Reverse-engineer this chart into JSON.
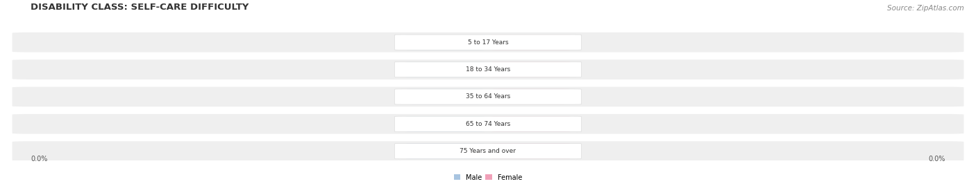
{
  "title": "DISABILITY CLASS: SELF-CARE DIFFICULTY",
  "source": "Source: ZipAtlas.com",
  "categories": [
    "5 to 17 Years",
    "18 to 34 Years",
    "35 to 64 Years",
    "65 to 74 Years",
    "75 Years and over"
  ],
  "male_values": [
    0.0,
    0.0,
    0.0,
    0.0,
    0.0
  ],
  "female_values": [
    0.0,
    0.0,
    0.0,
    0.0,
    0.0
  ],
  "male_color": "#a8c4e0",
  "female_color": "#f0a0b8",
  "row_bg_color": "#efefef",
  "axis_label_left": "0.0%",
  "axis_label_right": "0.0%",
  "legend_male": "Male",
  "legend_female": "Female",
  "title_fontsize": 9.5,
  "source_fontsize": 7.5,
  "background_color": "#ffffff",
  "max_val": 1.0
}
